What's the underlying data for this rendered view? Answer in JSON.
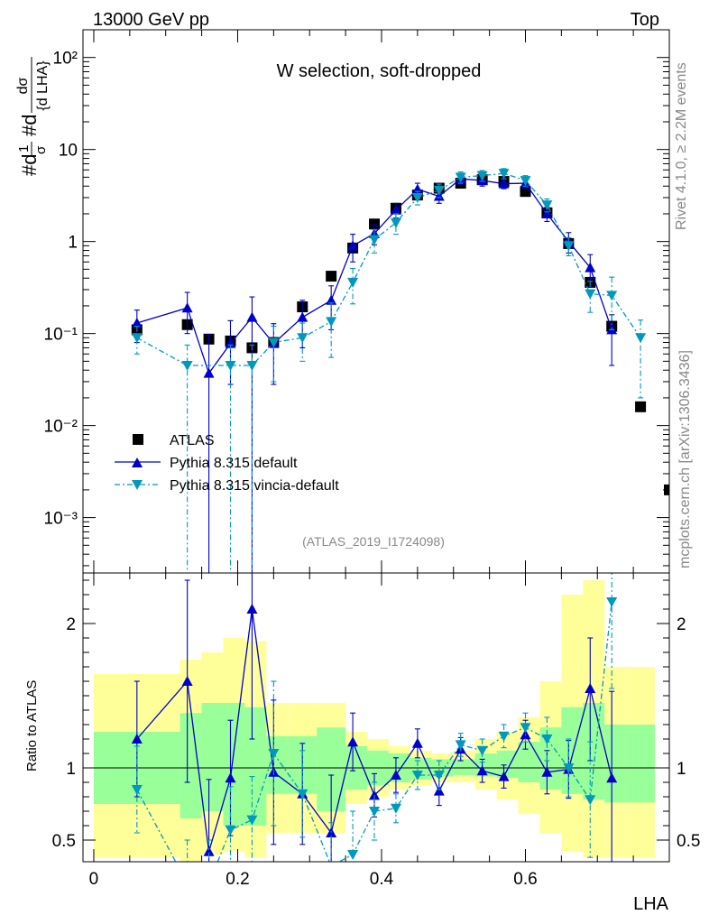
{
  "header": {
    "left": "13000 GeV pp",
    "right": "Top"
  },
  "side_labels": {
    "rivet": "Rivet 4.1.0, ≥ 2.2M events",
    "mcplots": "mcplots.cern.ch [arXiv:1306.3436]"
  },
  "analysis_id": "(ATLAS_2019_I1724098)",
  "chart_data": [
    {
      "type": "scatter",
      "panel": "main",
      "title": "W selection, soft-dropped",
      "ylabel_parts": {
        "lhs": "#d",
        "frac": "1",
        "sigma": "σ",
        "mid": "#d",
        "dsigma": "dσ",
        "dlha": "{d LHA}"
      },
      "ylabel": "#d (1/σ) #d (dσ/{d LHA})",
      "yscale": "log",
      "ylim": [
        0.00025,
        200
      ],
      "xlim": [
        -0.015,
        0.8
      ],
      "ytick_labels": [
        "10⁻³",
        "10⁻²",
        "10⁻¹",
        "1",
        "10",
        "10²"
      ],
      "legend": [
        "ATLAS",
        "Pythia 8.315 default",
        "Pythia 8.315 vincia-default"
      ],
      "series": [
        {
          "name": "ATLAS",
          "style": "square",
          "color": "#000000",
          "x": [
            0.06,
            0.13,
            0.16,
            0.19,
            0.22,
            0.25,
            0.29,
            0.33,
            0.36,
            0.39,
            0.42,
            0.45,
            0.48,
            0.51,
            0.54,
            0.57,
            0.6,
            0.63,
            0.66,
            0.69,
            0.72,
            0.76,
            0.8
          ],
          "values": [
            0.11,
            0.125,
            0.087,
            0.083,
            0.07,
            0.08,
            0.195,
            0.42,
            0.85,
            1.55,
            2.3,
            3.2,
            3.8,
            4.3,
            4.7,
            4.5,
            3.5,
            2.05,
            0.95,
            0.36,
            0.12,
            0.016,
            0.002
          ]
        },
        {
          "name": "Pythia 8.315 default",
          "style": "triangle-up",
          "color": "#0000cc",
          "x": [
            0.06,
            0.13,
            0.16,
            0.19,
            0.22,
            0.25,
            0.29,
            0.33,
            0.36,
            0.39,
            0.42,
            0.45,
            0.48,
            0.51,
            0.54,
            0.57,
            0.6,
            0.63,
            0.66,
            0.69,
            0.72
          ],
          "values": [
            0.13,
            0.19,
            0.037,
            0.078,
            0.15,
            0.078,
            0.15,
            0.23,
            0.9,
            1.22,
            2.2,
            3.7,
            3.1,
            4.8,
            4.6,
            4.25,
            4.3,
            2.0,
            1.0,
            0.52,
            0.11
          ],
          "err_lo": [
            0.05,
            0.09,
            0.037,
            0.05,
            0.15,
            0.05,
            0.08,
            0.12,
            0.3,
            0.3,
            0.4,
            0.6,
            0.5,
            0.6,
            0.6,
            0.5,
            0.5,
            0.35,
            0.25,
            0.2,
            0.065
          ],
          "err_hi": [
            0.05,
            0.09,
            0.06,
            0.06,
            0.1,
            0.05,
            0.08,
            0.1,
            0.3,
            0.3,
            0.4,
            0.6,
            0.5,
            0.6,
            0.6,
            0.5,
            0.5,
            0.35,
            0.25,
            0.2,
            0.05
          ]
        },
        {
          "name": "Pythia 8.315 vincia-default",
          "style": "triangle-down",
          "color": "#0099bb",
          "x": [
            0.06,
            0.13,
            0.19,
            0.22,
            0.25,
            0.29,
            0.33,
            0.36,
            0.39,
            0.42,
            0.45,
            0.48,
            0.51,
            0.54,
            0.57,
            0.6,
            0.63,
            0.66,
            0.69,
            0.72,
            0.76
          ],
          "values": [
            0.09,
            0.045,
            0.045,
            0.045,
            0.08,
            0.09,
            0.135,
            0.36,
            1.05,
            1.6,
            3.0,
            3.6,
            5.0,
            5.2,
            5.5,
            4.6,
            2.5,
            0.9,
            0.27,
            0.26,
            0.09
          ],
          "err_lo": [
            0.03,
            0.045,
            0.045,
            0.045,
            0.05,
            0.04,
            0.08,
            0.15,
            0.3,
            0.4,
            0.5,
            0.6,
            0.7,
            0.7,
            0.7,
            0.6,
            0.4,
            0.2,
            0.1,
            0.15,
            0.07
          ],
          "err_hi": [
            0.03,
            0.03,
            0.03,
            0.03,
            0.04,
            0.04,
            0.08,
            0.15,
            0.3,
            0.4,
            0.5,
            0.6,
            0.7,
            0.7,
            0.7,
            0.6,
            0.4,
            0.2,
            0.1,
            0.15,
            0.05
          ]
        }
      ]
    },
    {
      "type": "line",
      "panel": "ratio",
      "xlabel": "LHA",
      "ylabel": "Ratio to ATLAS",
      "ylim": [
        0.35,
        2.35
      ],
      "xlim": [
        -0.015,
        0.8
      ],
      "xtick_labels": [
        "0",
        "0.2",
        "0.4",
        "0.6"
      ],
      "ytick_labels": [
        "0.5",
        "1",
        "2"
      ],
      "bands": {
        "edges": [
          0,
          0.06,
          0.12,
          0.15,
          0.18,
          0.21,
          0.24,
          0.27,
          0.31,
          0.35,
          0.38,
          0.41,
          0.44,
          0.47,
          0.5,
          0.53,
          0.56,
          0.59,
          0.62,
          0.65,
          0.68,
          0.71,
          0.74,
          0.78
        ],
        "stat_lo": [
          0.75,
          0.75,
          0.65,
          0.7,
          0.6,
          0.6,
          0.82,
          0.82,
          0.7,
          0.85,
          0.88,
          0.9,
          0.92,
          0.94,
          0.95,
          0.94,
          0.93,
          0.9,
          0.85,
          0.82,
          0.78,
          0.76,
          0.76
        ],
        "stat_hi": [
          1.25,
          1.25,
          1.38,
          1.45,
          1.45,
          1.42,
          1.22,
          1.22,
          1.28,
          1.15,
          1.12,
          1.1,
          1.07,
          1.06,
          1.06,
          1.1,
          1.12,
          1.18,
          1.28,
          1.42,
          1.45,
          1.3,
          1.3
        ],
        "tot_lo": [
          0.38,
          0.38,
          0.35,
          0.4,
          0.42,
          0.38,
          0.55,
          0.55,
          0.55,
          0.75,
          0.8,
          0.85,
          0.88,
          0.9,
          0.9,
          0.85,
          0.78,
          0.68,
          0.55,
          0.42,
          0.38,
          0.38,
          0.38
        ],
        "tot_hi": [
          1.65,
          1.65,
          1.75,
          1.8,
          1.9,
          1.88,
          1.45,
          1.45,
          1.45,
          1.25,
          1.2,
          1.15,
          1.12,
          1.1,
          1.12,
          1.2,
          1.25,
          1.35,
          1.6,
          2.2,
          2.3,
          1.7,
          1.7
        ]
      },
      "series": [
        {
          "name": "Pythia 8.315 default",
          "color": "#0000cc",
          "x": [
            0.06,
            0.13,
            0.16,
            0.19,
            0.22,
            0.25,
            0.29,
            0.33,
            0.36,
            0.39,
            0.42,
            0.45,
            0.48,
            0.51,
            0.54,
            0.57,
            0.6,
            0.63,
            0.66,
            0.69,
            0.72
          ],
          "values": [
            1.2,
            1.6,
            0.42,
            0.93,
            2.1,
            0.97,
            0.82,
            0.55,
            1.18,
            0.81,
            0.95,
            1.17,
            0.84,
            1.13,
            0.98,
            0.94,
            1.23,
            0.97,
            0.99,
            1.55,
            0.93
          ],
          "err_lo": [
            0.4,
            0.7,
            0.2,
            0.4,
            0.9,
            0.5,
            0.35,
            0.3,
            0.2,
            0.15,
            0.12,
            0.1,
            0.1,
            0.08,
            0.08,
            0.08,
            0.1,
            0.15,
            0.2,
            0.5,
            0.6
          ],
          "err_hi": [
            0.4,
            0.7,
            0.5,
            0.4,
            0.6,
            0.5,
            0.35,
            0.4,
            0.2,
            0.15,
            0.12,
            0.1,
            0.1,
            0.08,
            0.08,
            0.08,
            0.1,
            0.15,
            0.2,
            0.35,
            0.6
          ]
        },
        {
          "name": "Pythia 8.315 vincia-default",
          "color": "#0099bb",
          "x": [
            0.06,
            0.13,
            0.16,
            0.19,
            0.22,
            0.25,
            0.29,
            0.33,
            0.36,
            0.39,
            0.42,
            0.45,
            0.48,
            0.51,
            0.54,
            0.57,
            0.6,
            0.63,
            0.66,
            0.69,
            0.72
          ],
          "values": [
            0.85,
            0.2,
            0.2,
            0.57,
            0.64,
            1.1,
            0.82,
            0.32,
            0.4,
            0.7,
            0.72,
            0.95,
            0.95,
            1.16,
            1.12,
            1.22,
            1.28,
            1.2,
            1.0,
            0.78,
            2.15
          ],
          "err_lo": [
            0.3,
            0.2,
            0.2,
            0.3,
            0.3,
            0.5,
            0.3,
            0.3,
            0.3,
            0.2,
            0.1,
            0.1,
            0.1,
            0.08,
            0.08,
            0.08,
            0.1,
            0.15,
            0.2,
            0.4,
            0.6
          ],
          "err_hi": [
            0.3,
            0.3,
            0.3,
            0.3,
            0.3,
            0.5,
            0.3,
            0.3,
            0.3,
            0.2,
            0.1,
            0.1,
            0.1,
            0.08,
            0.08,
            0.08,
            0.1,
            0.15,
            0.2,
            0.4,
            0.4
          ]
        }
      ]
    }
  ],
  "colors": {
    "stat_band": "#99ff99",
    "total_band": "#ffff99"
  }
}
